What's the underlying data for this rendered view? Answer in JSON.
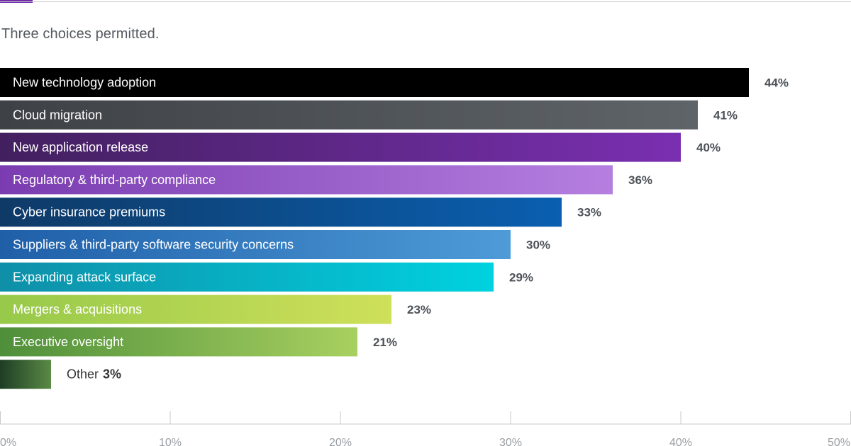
{
  "subtitle": "Three choices permitted.",
  "chart_data": {
    "type": "bar",
    "orientation": "horizontal",
    "categories": [
      "New technology adoption",
      "Cloud migration",
      "New application release",
      "Regulatory & third-party compliance",
      "Cyber insurance premiums",
      "Suppliers & third-party software security concerns",
      "Expanding attack surface",
      "Mergers & acquisitions",
      "Executive oversight",
      "Other"
    ],
    "values": [
      44,
      41,
      40,
      36,
      33,
      30,
      29,
      23,
      21,
      3
    ],
    "value_labels": [
      "44%",
      "41%",
      "40%",
      "36%",
      "33%",
      "30%",
      "29%",
      "23%",
      "21%",
      "3%"
    ],
    "xlim": [
      0,
      50
    ],
    "x_ticks": [
      "0%",
      "10%",
      "20%",
      "30%",
      "40%",
      "50%"
    ],
    "title": "",
    "subtitle": "Three choices permitted.",
    "xlabel": "",
    "ylabel": "",
    "grid": false,
    "legend": "none",
    "colors": [
      [
        "#000000",
        "#000000"
      ],
      [
        "#3e4246",
        "#5f6468"
      ],
      [
        "#42205f",
        "#7a2fb0"
      ],
      [
        "#7a3cb0",
        "#b57fe0"
      ],
      [
        "#0f3a67",
        "#0a5fb0"
      ],
      [
        "#1f5fa8",
        "#4e9bd8"
      ],
      [
        "#0f8fa8",
        "#00d2e0"
      ],
      [
        "#97c94a",
        "#cfe05a"
      ],
      [
        "#4f8f3a",
        "#a8d060"
      ],
      [
        "#1e3d25",
        "#5a8a45"
      ]
    ]
  }
}
